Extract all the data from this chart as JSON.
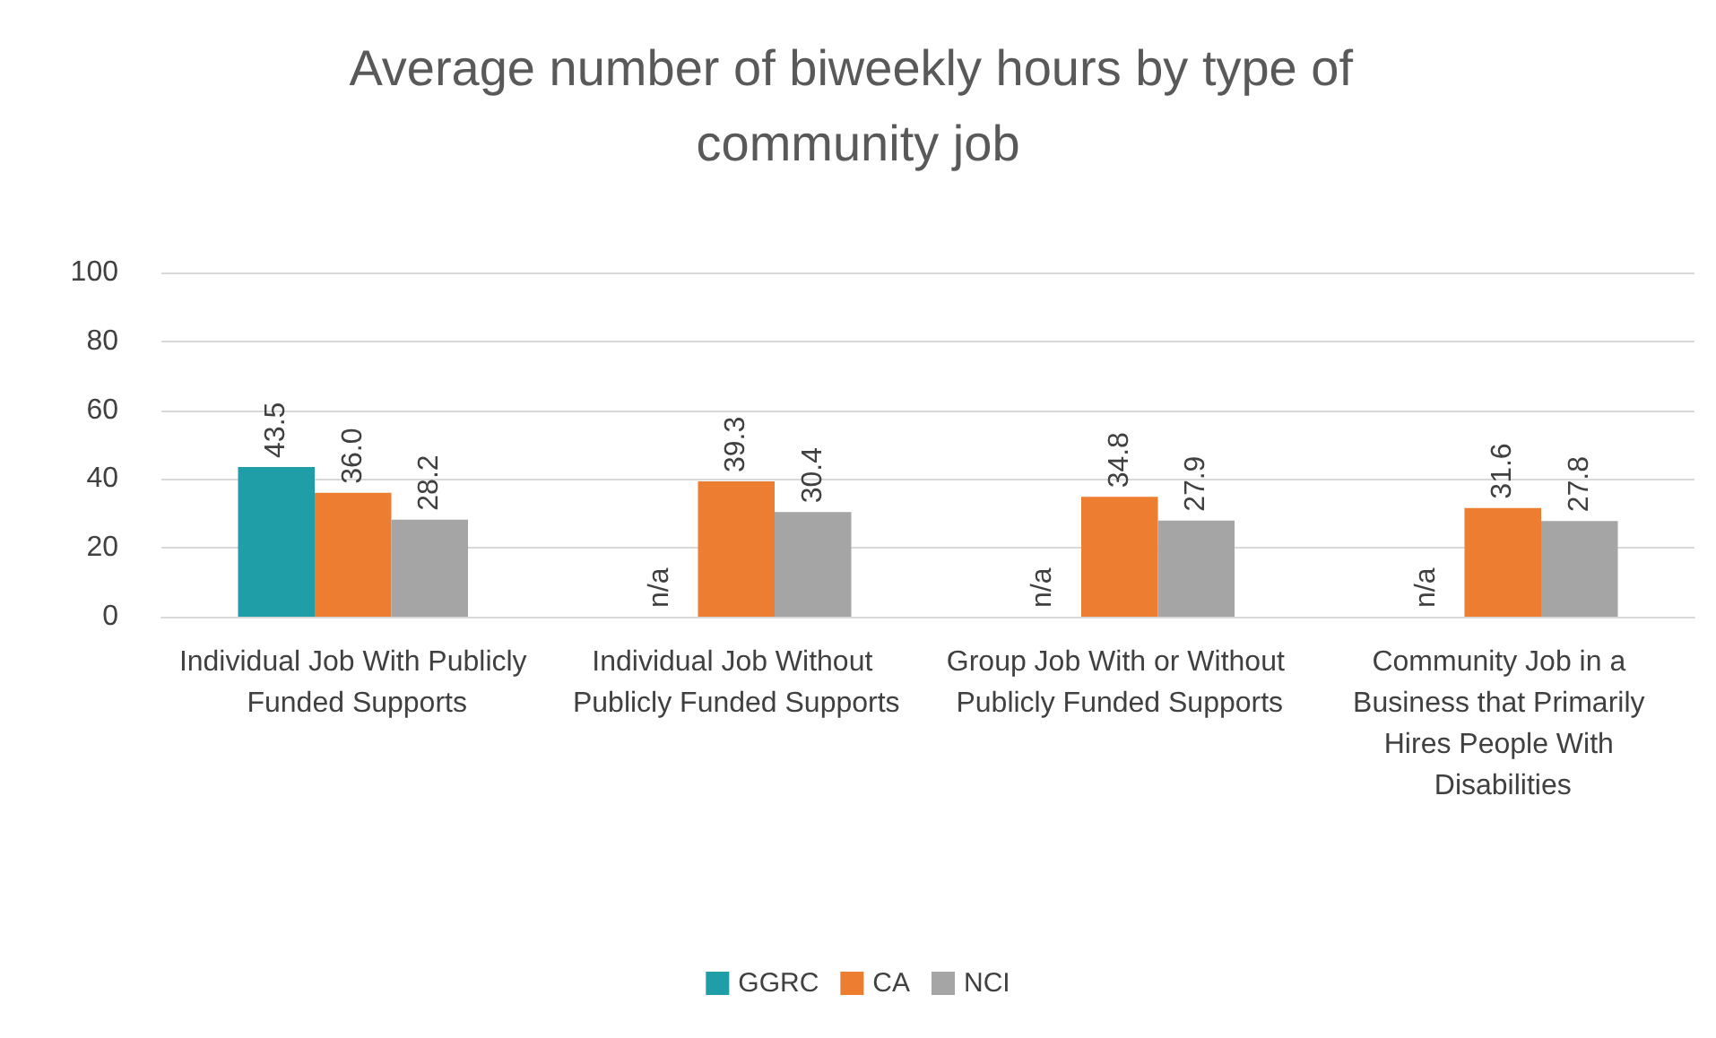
{
  "chart_data": {
    "type": "bar",
    "title": "Average number of biweekly hours by type of community job",
    "categories": [
      "Individual Job With Publicly Funded Supports",
      "Individual Job Without Publicly Funded Supports",
      "Group Job With or Without Publicly Funded Supports",
      "Community Job in a Business that Primarily Hires People With Disabilities"
    ],
    "series": [
      {
        "name": "GGRC",
        "color": "#1f9ea8",
        "values": [
          43.5,
          null,
          null,
          null
        ],
        "value_labels": [
          "43.5",
          "n/a",
          "n/a",
          "n/a"
        ]
      },
      {
        "name": "CA",
        "color": "#ed7d31",
        "values": [
          36.0,
          39.3,
          34.8,
          31.6
        ],
        "value_labels": [
          "36.0",
          "39.3",
          "34.8",
          "31.6"
        ]
      },
      {
        "name": "NCI",
        "color": "#a5a5a5",
        "values": [
          28.2,
          30.4,
          27.9,
          27.8
        ],
        "value_labels": [
          "28.2",
          "30.4",
          "27.9",
          "27.8"
        ]
      }
    ],
    "ylim": [
      0,
      100
    ],
    "yticks": [
      0,
      20,
      40,
      60,
      80,
      100
    ],
    "grid": true,
    "legend": "bottom"
  }
}
